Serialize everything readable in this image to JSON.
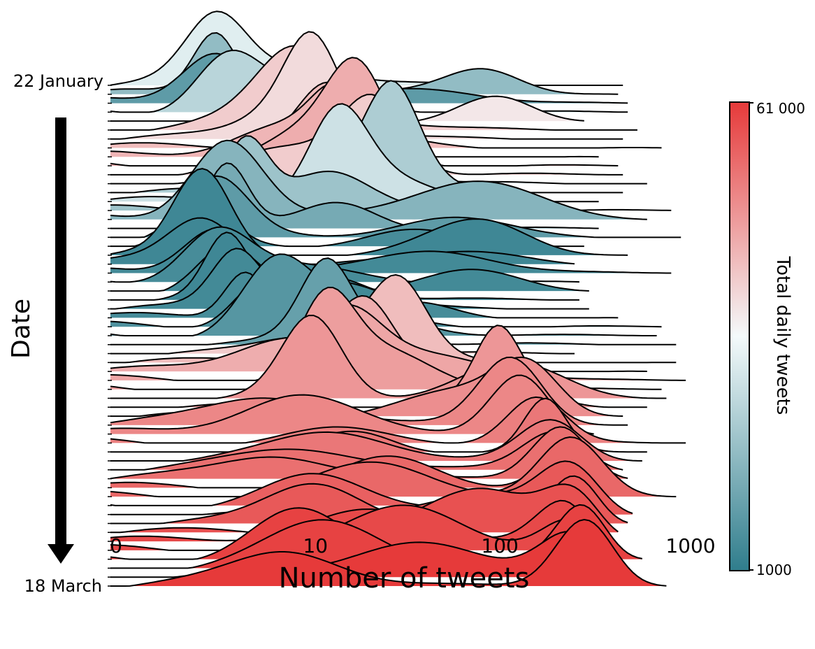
{
  "chart_data": {
    "type": "ridgeline",
    "xlabel": "Number of tweets",
    "ylabel": "Date",
    "x_scale": "log",
    "x_ticks": [
      {
        "value": 0,
        "label": "0"
      },
      {
        "value": 10,
        "label": "10"
      },
      {
        "value": 100,
        "label": "100"
      },
      {
        "value": 1000,
        "label": "1000"
      }
    ],
    "date_start_label": "22 January",
    "date_end_label": "18 March",
    "ridge_count": 57,
    "colorbar": {
      "label": "Total daily tweets",
      "min_label": "1000",
      "max_label": "61 000",
      "min_color": "#2f7d8c",
      "mid_color": "#f4fafb",
      "max_color": "#e63a3a"
    },
    "ridge_color_levels": [
      0.45,
      0.25,
      0.12,
      0.35,
      0.55,
      0.62,
      0.58,
      0.66,
      0.68,
      0.7,
      0.62,
      0.48,
      0.32,
      0.4,
      0.28,
      0.22,
      0.18,
      0.12,
      0.06,
      0.04,
      0.04,
      0.05,
      0.06,
      0.05,
      0.04,
      0.05,
      0.06,
      0.08,
      0.1,
      0.14,
      0.62,
      0.66,
      0.7,
      0.72,
      0.74,
      0.76,
      0.76,
      0.78,
      0.8,
      0.8,
      0.82,
      0.84,
      0.84,
      0.86,
      0.86,
      0.88,
      0.88,
      0.9,
      0.92,
      0.92,
      0.94,
      0.96,
      0.96,
      0.98,
      0.98,
      1.0,
      1.0
    ],
    "ridge_peak_tweets": [
      2.5,
      2.5,
      2.5,
      3.0,
      6.0,
      8.0,
      10.0,
      12.0,
      14.0,
      18.0,
      22.0,
      25.0,
      28.0,
      14.0,
      4.0,
      3.0,
      3.0,
      2.5,
      2.0,
      2.0,
      2.0,
      2.5,
      2.5,
      3.0,
      3.0,
      3.5,
      4.0,
      5.0,
      6.0,
      12.0,
      25.0,
      30.0,
      20.0,
      15.0,
      12.0,
      10.0,
      100.0,
      150.0,
      120.0,
      140.0,
      160.0,
      180.0,
      200.0,
      220.0,
      230.0,
      240.0,
      250.0,
      260.0,
      260.0,
      270.0,
      280.0,
      280.0,
      290.0,
      290.0,
      300.0,
      300.0,
      300.0
    ]
  }
}
